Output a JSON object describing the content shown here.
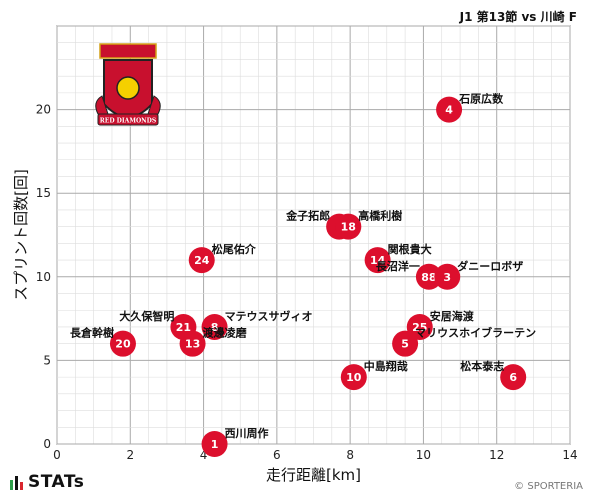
{
  "header": {
    "title": "J1 第13節 vs 川崎 F"
  },
  "footer": {
    "brand": "STATs",
    "credit": "© SPORTERIA"
  },
  "logo": {
    "text": "RED DIAMONDS"
  },
  "colors": {
    "marker": "#dc0f2d",
    "grid_major": "#aaaaaa",
    "grid_minor": "#dddddd",
    "logo_red": "#c8102e",
    "logo_gold": "#d4a017",
    "brand_green": "#2e9e4a",
    "brand_red": "#d9262e"
  },
  "chart_data": {
    "type": "scatter",
    "xlabel": "走行距離[km]",
    "ylabel": "スプリント回数[回]",
    "xlim": [
      0,
      14
    ],
    "ylim": [
      0,
      25
    ],
    "xticks": [
      0,
      2,
      4,
      6,
      8,
      10,
      12,
      14
    ],
    "yticks": [
      0,
      5,
      10,
      15,
      20
    ],
    "grid": true,
    "points": [
      {
        "number": "4",
        "name": "石原広数",
        "x": 10.7,
        "y": 20
      },
      {
        "number": "7",
        "name": "金子拓郎",
        "x": 7.7,
        "y": 13
      },
      {
        "number": "18",
        "name": "高橋利樹",
        "x": 7.95,
        "y": 13
      },
      {
        "number": "24",
        "name": "松尾佑介",
        "x": 3.95,
        "y": 11
      },
      {
        "number": "14",
        "name": "関根貴大",
        "x": 8.75,
        "y": 11
      },
      {
        "number": "88",
        "name": "長沼洋一",
        "x": 10.15,
        "y": 10
      },
      {
        "number": "3",
        "name": "ダニーロボザ",
        "x": 10.65,
        "y": 10
      },
      {
        "number": "21",
        "name": "大久保智明",
        "x": 3.45,
        "y": 7
      },
      {
        "number": "8",
        "name": "マテウスサヴィオ",
        "x": 4.3,
        "y": 7
      },
      {
        "number": "13",
        "name": "渡邊凌磨",
        "x": 3.7,
        "y": 6
      },
      {
        "number": "25",
        "name": "安居海渡",
        "x": 9.9,
        "y": 7
      },
      {
        "number": "5",
        "name": "マリウスホイブラーテン",
        "x": 9.5,
        "y": 6
      },
      {
        "number": "20",
        "name": "長倉幹樹",
        "x": 1.8,
        "y": 6
      },
      {
        "number": "10",
        "name": "中島翔哉",
        "x": 8.1,
        "y": 4
      },
      {
        "number": "6",
        "name": "松本泰志",
        "x": 12.45,
        "y": 4
      },
      {
        "number": "1",
        "name": "西川周作",
        "x": 4.3,
        "y": 0
      }
    ]
  }
}
